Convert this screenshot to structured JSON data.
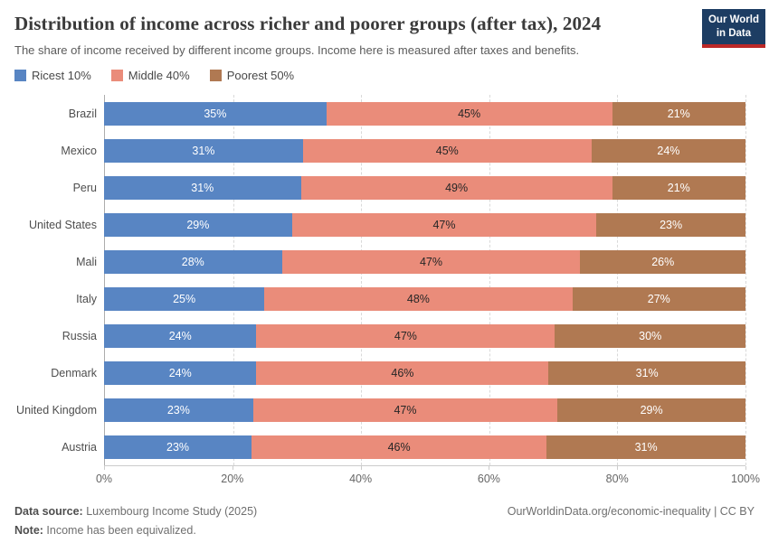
{
  "chart_data": {
    "type": "bar",
    "stacked": true,
    "orientation": "horizontal",
    "title": "Distribution of income across richer and poorer groups (after tax), 2024",
    "subtitle": "The share of income received by different income groups. Income here is measured after taxes and benefits.",
    "categories": [
      "Brazil",
      "Mexico",
      "Peru",
      "United States",
      "Mali",
      "Italy",
      "Russia",
      "Denmark",
      "United Kingdom",
      "Austria"
    ],
    "series": [
      {
        "name": "Ricest 10%",
        "color": "#5885C3",
        "label_color": "#FFFFFF",
        "values": [
          35,
          31,
          31,
          29,
          28,
          25,
          24,
          24,
          23,
          23
        ]
      },
      {
        "name": "Middle 40%",
        "color": "#EA8C7A",
        "label_color": "#262626",
        "values": [
          45,
          45,
          49,
          47,
          47,
          48,
          47,
          46,
          47,
          46
        ]
      },
      {
        "name": "Poorest 50%",
        "color": "#B07952",
        "label_color": "#FFFFFF",
        "values": [
          21,
          24,
          21,
          23,
          26,
          27,
          30,
          31,
          29,
          31
        ]
      }
    ],
    "value_suffix": "%",
    "x_ticks": [
      "0%",
      "20%",
      "40%",
      "60%",
      "80%",
      "100%"
    ],
    "xlim": [
      0,
      100
    ],
    "grid": "dashed-vertical",
    "legend_position": "top"
  },
  "logo": {
    "line1": "Our World",
    "line2": "in Data",
    "bg_color": "#1D3D63",
    "accent_color": "#BC2827"
  },
  "footer": {
    "datasource_label": "Data source:",
    "datasource_text": " Luxembourg Income Study (2025)",
    "note_label": "Note:",
    "note_text": " Income has been equivalized.",
    "right_text": "OurWorldinData.org/economic-inequality | CC BY"
  }
}
